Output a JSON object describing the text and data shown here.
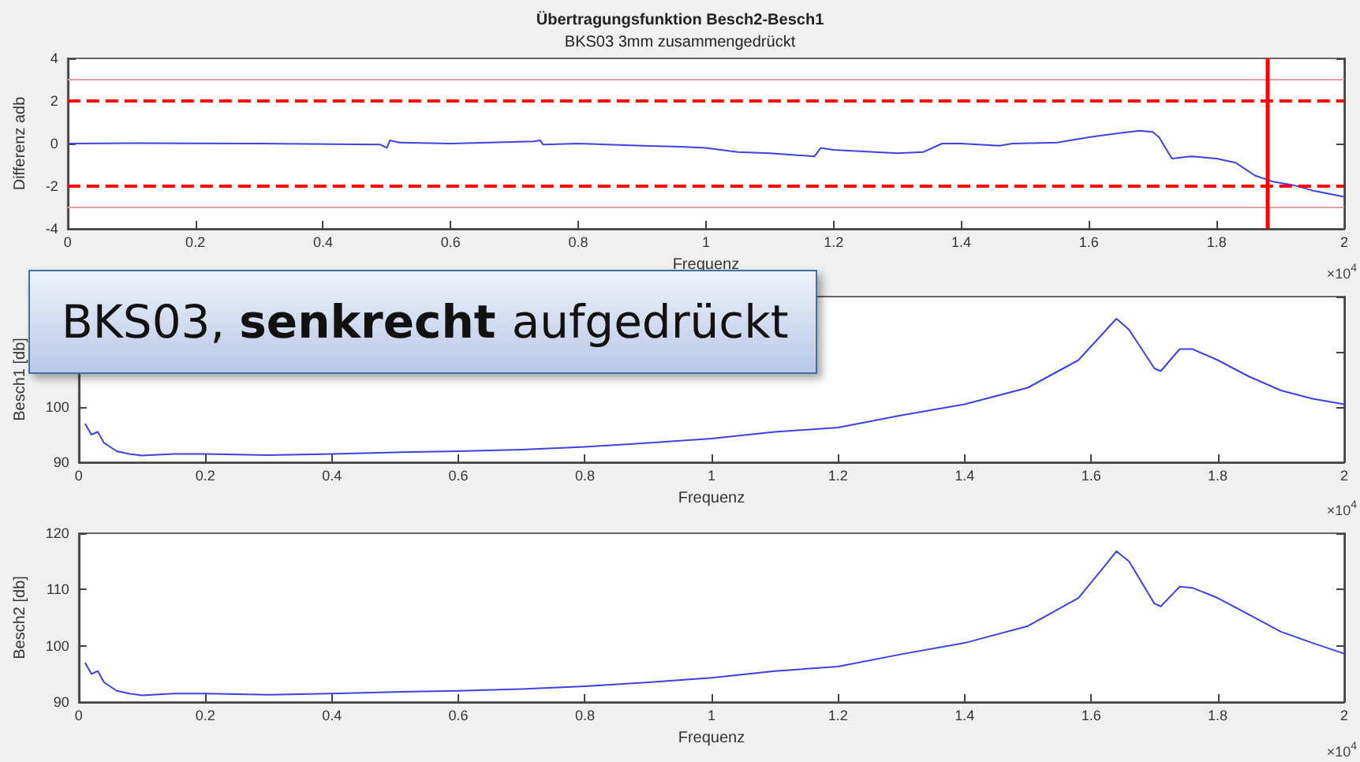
{
  "chart_data": [
    {
      "type": "line",
      "title": "Übertragungsfunktion Besch2-Besch1",
      "subtitle": "BKS03 3mm zusammengedrückt",
      "xlabel": "Frequenz",
      "ylabel": "Differenz adb",
      "annotations": [
        "×10$^{4}$"
      ],
      "xlim": [
        0,
        2
      ],
      "xticks": [
        0,
        0.2,
        0.4,
        0.6,
        0.8,
        1,
        1.2,
        1.4,
        1.6,
        1.8,
        2
      ],
      "ylim": [
        -4,
        4
      ],
      "yticks": [
        -4,
        -2,
        0,
        2,
        4
      ],
      "grid": false,
      "marker": "none",
      "ref_lines": [
        {
          "axis": "y",
          "value": 3,
          "color": "#e8a0a8",
          "line_style": "solid"
        },
        {
          "axis": "y",
          "value": -3,
          "color": "#e8a0a8",
          "line_style": "solid"
        },
        {
          "axis": "y",
          "value": 2,
          "color": "#ff0000",
          "line_style": "dashed"
        },
        {
          "axis": "y",
          "value": -2,
          "color": "#ff0000",
          "line_style": "dashed"
        },
        {
          "axis": "x",
          "value": 1.88,
          "color": "#ff0000",
          "line_style": "solid"
        }
      ],
      "series": [
        {
          "color": "#4040e0",
          "x": [
            0,
            0.1,
            0.3,
            0.49,
            0.5,
            0.505,
            0.52,
            0.6,
            0.73,
            0.74,
            0.745,
            0.8,
            0.9,
            0.96,
            1,
            1.05,
            1.1,
            1.17,
            1.18,
            1.2,
            1.3,
            1.34,
            1.37,
            1.4,
            1.46,
            1.48,
            1.55,
            1.6,
            1.65,
            1.68,
            1.7,
            1.71,
            1.73,
            1.76,
            1.8,
            1.83,
            1.86,
            1.89,
            1.92,
            1.95,
            2
          ],
          "values": [
            0,
            0.02,
            0,
            -0.05,
            -0.2,
            0.15,
            0.05,
            0,
            0.1,
            0.15,
            -0.05,
            0,
            -0.1,
            -0.15,
            -0.2,
            -0.4,
            -0.45,
            -0.6,
            -0.2,
            -0.3,
            -0.45,
            -0.4,
            0,
            0,
            -0.1,
            0,
            0.05,
            0.3,
            0.5,
            0.6,
            0.55,
            0.3,
            -0.7,
            -0.6,
            -0.7,
            -0.9,
            -1.5,
            -1.8,
            -1.95,
            -2.2,
            -2.5
          ]
        }
      ]
    },
    {
      "type": "line",
      "xlabel": "Frequenz",
      "ylabel": "Besch1 [db]",
      "annotations": [
        "×10$^{4}$",
        "BKS03, senkrecht aufgedrückt"
      ],
      "xlim": [
        0,
        2
      ],
      "xticks": [
        0,
        0.2,
        0.4,
        0.6,
        0.8,
        1,
        1.2,
        1.4,
        1.6,
        1.8,
        2
      ],
      "ylim": [
        90,
        120
      ],
      "yticks": [
        90,
        100,
        {
          "value": 110,
          "label": null
        },
        {
          "value": 120,
          "label": null
        }
      ],
      "grid": false,
      "marker": "none",
      "series": [
        {
          "color": "#4040e0",
          "x": [
            0.01,
            0.02,
            0.03,
            0.04,
            0.06,
            0.08,
            0.1,
            0.15,
            0.2,
            0.3,
            0.4,
            0.5,
            0.6,
            0.7,
            0.8,
            0.9,
            1,
            1.1,
            1.2,
            1.3,
            1.4,
            1.5,
            1.58,
            1.62,
            1.64,
            1.66,
            1.7,
            1.71,
            1.74,
            1.76,
            1.8,
            1.85,
            1.9,
            1.95,
            2
          ],
          "values": [
            97,
            95,
            95.5,
            93.5,
            92,
            91.5,
            91.2,
            91.5,
            91.5,
            91.3,
            91.5,
            91.8,
            92,
            92.3,
            92.8,
            93.5,
            94.3,
            95.5,
            96.3,
            98.5,
            100.5,
            103.5,
            108.5,
            113.5,
            116,
            114,
            107,
            106.5,
            110.5,
            110.5,
            108.5,
            105.5,
            103,
            101.5,
            100.5
          ]
        }
      ]
    },
    {
      "type": "line",
      "xlabel": "Frequenz",
      "ylabel": "Besch2 [db]",
      "annotations": [
        "×10$^{4}$"
      ],
      "xlim": [
        0,
        2
      ],
      "xticks": [
        0,
        0.2,
        0.4,
        0.6,
        0.8,
        1,
        1.2,
        1.4,
        1.6,
        1.8,
        2
      ],
      "ylim": [
        90,
        120
      ],
      "yticks": [
        90,
        100,
        110,
        120
      ],
      "grid": false,
      "marker": "none",
      "series": [
        {
          "color": "#4040e0",
          "x": [
            0.01,
            0.02,
            0.03,
            0.04,
            0.06,
            0.08,
            0.1,
            0.15,
            0.2,
            0.3,
            0.4,
            0.5,
            0.6,
            0.7,
            0.8,
            0.9,
            1,
            1.1,
            1.2,
            1.3,
            1.4,
            1.5,
            1.58,
            1.62,
            1.64,
            1.66,
            1.7,
            1.71,
            1.74,
            1.76,
            1.8,
            1.85,
            1.9,
            1.95,
            2
          ],
          "values": [
            97,
            95,
            95.5,
            93.5,
            92,
            91.5,
            91.2,
            91.5,
            91.5,
            91.3,
            91.5,
            91.8,
            92,
            92.3,
            92.8,
            93.5,
            94.3,
            95.5,
            96.3,
            98.5,
            100.5,
            103.5,
            108.5,
            114,
            116.8,
            115,
            107.5,
            107,
            110.5,
            110.3,
            108.5,
            105.5,
            102.5,
            100.5,
            98.6
          ]
        }
      ]
    }
  ]
}
